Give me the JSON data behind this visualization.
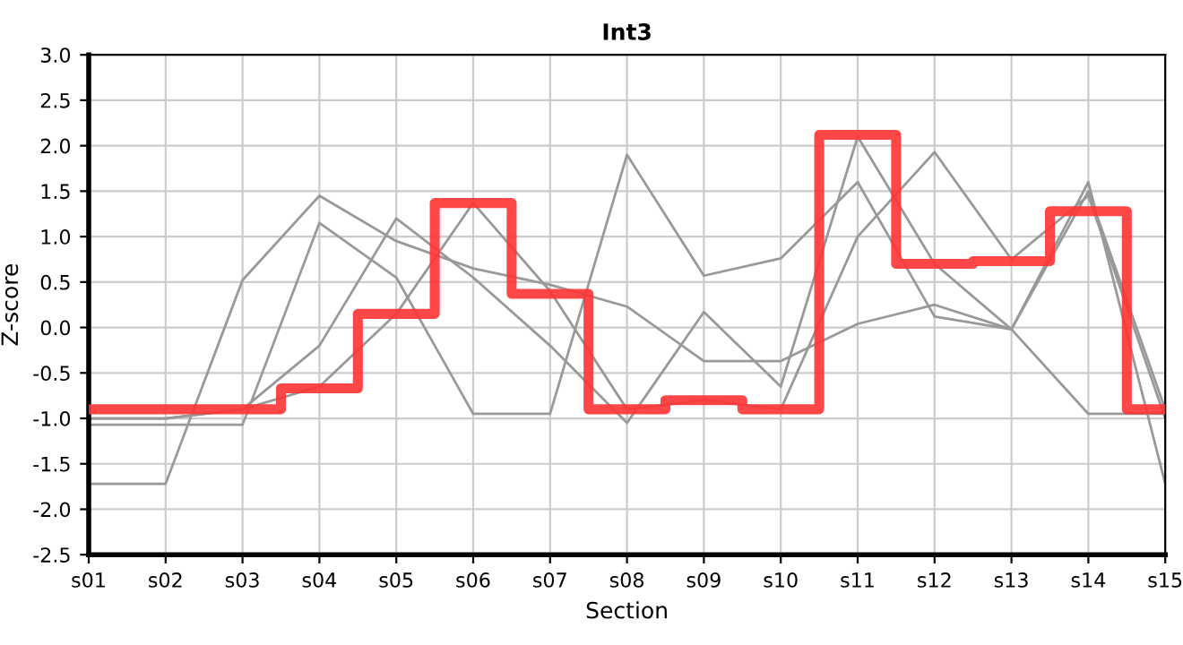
{
  "chart_data": {
    "type": "line",
    "title": "Int3",
    "xlabel": "Section",
    "ylabel": "Z-score",
    "categories": [
      "s01",
      "s02",
      "s03",
      "s04",
      "s05",
      "s06",
      "s07",
      "s08",
      "s09",
      "s10",
      "s11",
      "s12",
      "s13",
      "s14",
      "s15"
    ],
    "series": [
      {
        "color": "#999999",
        "values": [
          -1.72,
          -1.72,
          0.52,
          1.45,
          0.95,
          0.65,
          0.47,
          0.23,
          -0.37,
          -0.37,
          0.04,
          0.25,
          -0.02,
          -0.95,
          -0.95
        ]
      },
      {
        "color": "#999999",
        "values": [
          -1.07,
          -1.07,
          -1.07,
          1.15,
          0.55,
          -0.95,
          -0.95,
          1.9,
          0.57,
          0.76,
          1.6,
          0.12,
          -0.02,
          1.6,
          -1.72
        ]
      },
      {
        "color": "#999999",
        "values": [
          -1.0,
          -1.0,
          -0.9,
          -0.2,
          1.2,
          0.55,
          -0.2,
          -1.05,
          0.17,
          -0.65,
          2.1,
          0.7,
          -0.02,
          1.5,
          -0.9
        ]
      },
      {
        "color": "#999999",
        "values": [
          -1.0,
          -1.0,
          -0.9,
          -0.65,
          0.15,
          1.37,
          0.4,
          -0.9,
          -0.8,
          -0.9,
          1.0,
          1.93,
          0.75,
          1.45,
          -1.0
        ]
      },
      {
        "type": "step",
        "color": "#ff3333",
        "values": [
          -0.9,
          -0.9,
          -0.9,
          -0.67,
          0.15,
          1.37,
          0.37,
          -0.9,
          -0.8,
          -0.9,
          2.12,
          0.7,
          0.73,
          1.28,
          -0.9
        ]
      }
    ],
    "ylim": [
      -2.5,
      3.0
    ],
    "yticks": [
      {
        "value": -2.5,
        "label": "-2.5"
      },
      {
        "value": -2,
        "label": "-2.0"
      },
      {
        "value": -1.5,
        "label": "-1.5"
      },
      {
        "value": -1,
        "label": "-1.0"
      },
      {
        "value": -0.5,
        "label": "-0.5"
      },
      {
        "value": 0,
        "label": "0.0"
      },
      {
        "value": 0.5,
        "label": "0.5"
      },
      {
        "value": 1,
        "label": "1.0"
      },
      {
        "value": 1.5,
        "label": "1.5"
      },
      {
        "value": 2,
        "label": "2.0"
      },
      {
        "value": 2.5,
        "label": "2.5"
      },
      {
        "value": 3,
        "label": "3.0"
      }
    ],
    "grid": true
  }
}
